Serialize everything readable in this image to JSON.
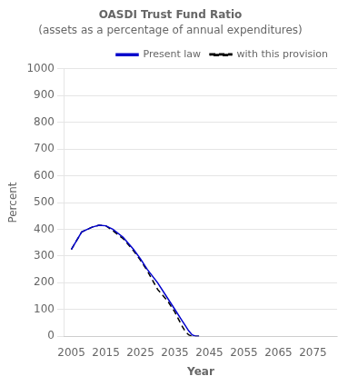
{
  "chart_data": {
    "type": "line",
    "title": "OASDI Trust Fund Ratio",
    "subtitle": "(assets as a percentage of annual expenditures)",
    "xlabel": "Year",
    "ylabel": "Percent",
    "xlim": [
      2003,
      2082
    ],
    "xticks": [
      2005,
      2015,
      2025,
      2035,
      2045,
      2055,
      2065,
      2075
    ],
    "ylim": [
      0,
      1000
    ],
    "yticks": [
      0,
      100,
      200,
      300,
      400,
      500,
      600,
      700,
      800,
      900,
      1000
    ],
    "grid": "y",
    "legend": "upper right",
    "series": [
      {
        "name": "Present law",
        "color": "#0000cc",
        "line_style": "solid",
        "x": [
          2005,
          2008,
          2011,
          2013,
          2015,
          2017,
          2020,
          2023,
          2025,
          2027,
          2030,
          2033,
          2035,
          2037,
          2038,
          2039,
          2040,
          2041,
          2042
        ],
        "values": [
          325,
          390,
          408,
          415,
          413,
          400,
          370,
          325,
          290,
          250,
          200,
          140,
          100,
          60,
          40,
          20,
          5,
          0,
          0
        ]
      },
      {
        "name": "with this provision",
        "color": "#000000",
        "line_style": "dashed",
        "x": [
          2005,
          2008,
          2011,
          2013,
          2015,
          2017,
          2020,
          2023,
          2025,
          2027,
          2030,
          2033,
          2035,
          2036,
          2037,
          2038,
          2039,
          2040,
          2041,
          2042
        ],
        "values": [
          325,
          390,
          408,
          415,
          413,
          395,
          365,
          320,
          285,
          245,
          175,
          130,
          90,
          65,
          40,
          18,
          5,
          0,
          0,
          0
        ]
      }
    ]
  }
}
